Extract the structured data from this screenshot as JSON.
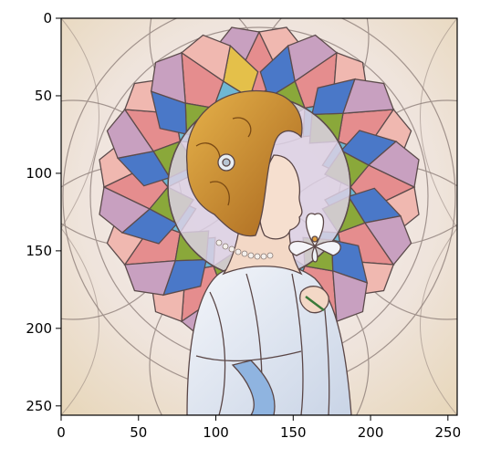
{
  "image": {
    "description_kind": "stained-glass-artwork",
    "palette": {
      "pink": "#e8a8b0",
      "teal": "#4fb5c8",
      "blue": "#4a78c8",
      "gold": "#e0b030",
      "green": "#8aa83a",
      "cream": "#f4eee0",
      "skin": "#f3d8c6",
      "hair": "#c98a2a",
      "dress": "#dfe6f0",
      "lead": "#6a5a5a"
    }
  },
  "axes": {
    "xlim": [
      0,
      256
    ],
    "ylim": [
      256,
      0
    ],
    "xticks": [
      "0",
      "50",
      "100",
      "150",
      "200",
      "250"
    ],
    "yticks": [
      "0",
      "50",
      "100",
      "150",
      "200",
      "250"
    ]
  }
}
